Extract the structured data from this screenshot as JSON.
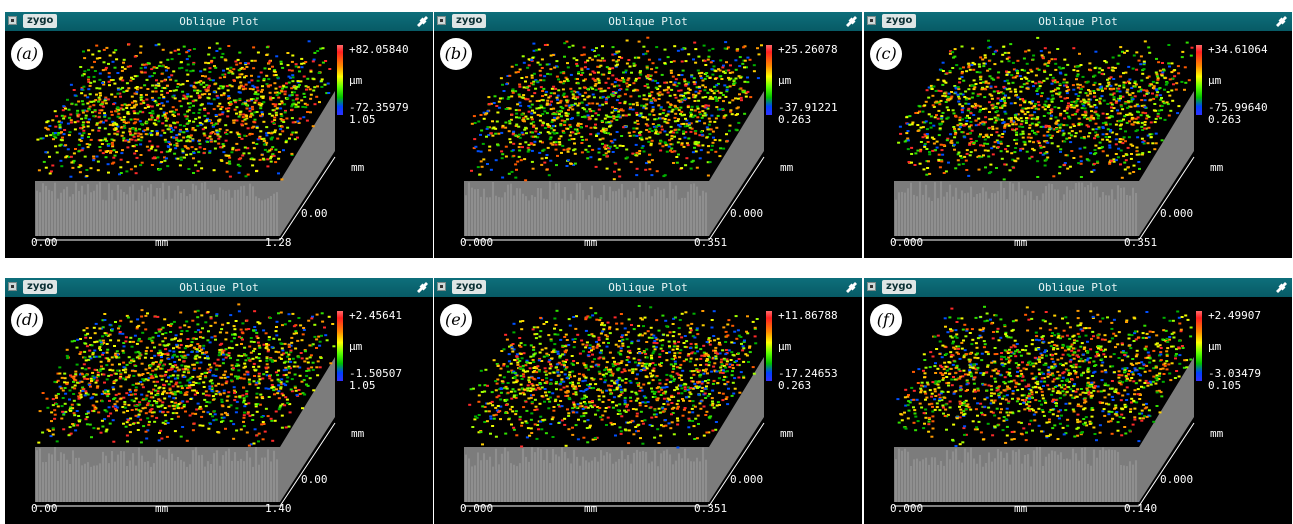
{
  "panels": [
    {
      "label": "(a)",
      "title": "Oblique Plot",
      "brand": "zygo",
      "max": "+82.05840",
      "unit": "µm",
      "min": "-72.35979",
      "zscale": "1.05",
      "x_start": "0.00",
      "x_unit": "mm",
      "x_end": "1.28",
      "y_unit": "mm",
      "y_start": "0.00"
    },
    {
      "label": "(b)",
      "title": "Oblique Plot",
      "brand": "zygo",
      "max": "+25.26078",
      "unit": "µm",
      "min": "-37.91221",
      "zscale": "0.263",
      "x_start": "0.000",
      "x_unit": "mm",
      "x_end": "0.351",
      "y_unit": "mm",
      "y_start": "0.000"
    },
    {
      "label": "(c)",
      "title": "Oblique Plot",
      "brand": "zygo",
      "max": "+34.61064",
      "unit": "µm",
      "min": "-75.99640",
      "zscale": "0.263",
      "x_start": "0.000",
      "x_unit": "mm",
      "x_end": "0.351",
      "y_unit": "mm",
      "y_start": "0.000"
    },
    {
      "label": "(d)",
      "title": "Oblique Plot",
      "brand": "zygo",
      "max": "+2.45641",
      "unit": "µm",
      "min": "-1.50507",
      "zscale": "1.05",
      "x_start": "0.00",
      "x_unit": "mm",
      "x_end": "1.40",
      "y_unit": "mm",
      "y_start": "0.00"
    },
    {
      "label": "(e)",
      "title": "Oblique Plot",
      "brand": "zygo",
      "max": "+11.86788",
      "unit": "µm",
      "min": "-17.24653",
      "zscale": "0.263",
      "x_start": "0.000",
      "x_unit": "mm",
      "x_end": "0.351",
      "y_unit": "mm",
      "y_start": "0.000"
    },
    {
      "label": "(f)",
      "title": "Oblique Plot",
      "brand": "zygo",
      "max": "+2.49907",
      "unit": "µm",
      "min": "-3.03479",
      "zscale": "0.105",
      "x_start": "0.000",
      "x_unit": "mm",
      "x_end": "0.140",
      "y_unit": "mm",
      "y_start": "0.000"
    }
  ],
  "icons": {
    "system_menu": "system-menu-icon",
    "tool": "wrench-icon"
  },
  "colors": {
    "titlebar": "#0a6470",
    "plot_bg": "#000000",
    "base": "#8a8a8a",
    "label_circle": "#ffffff"
  }
}
